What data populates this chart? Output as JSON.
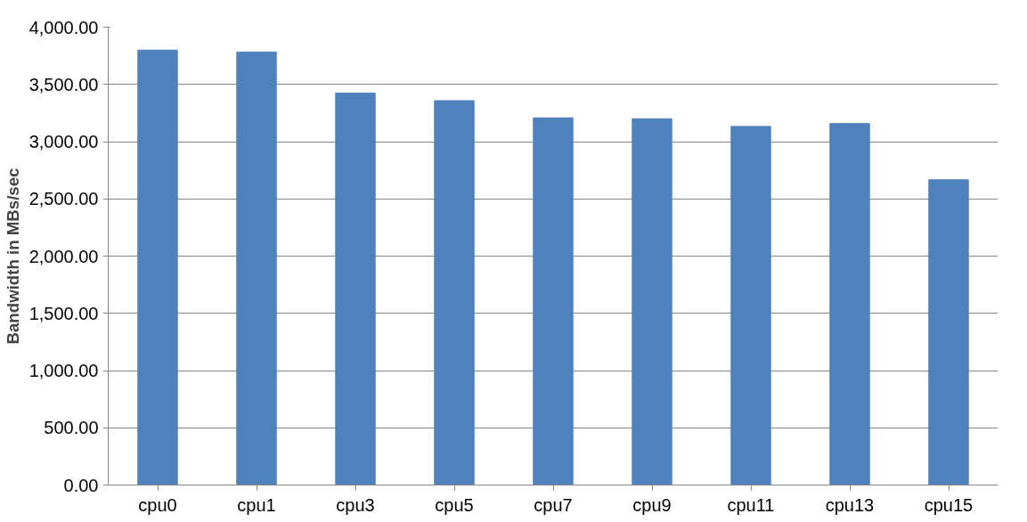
{
  "chart_data": {
    "type": "bar",
    "ylabel": "Bandwidth in MBs/sec",
    "categories": [
      "cpu0",
      "cpu1",
      "cpu3",
      "cpu5",
      "cpu7",
      "cpu9",
      "cpu11",
      "cpu13",
      "cpu15"
    ],
    "values": [
      3800,
      3783,
      3425,
      3358,
      3208,
      3200,
      3133,
      3158,
      2667
    ],
    "color": "#4f81bd",
    "ylim": [
      0,
      4000
    ],
    "yticks": [
      {
        "value": 0,
        "label": "0.00"
      },
      {
        "value": 500,
        "label": "500.00"
      },
      {
        "value": 1000,
        "label": "1,000.00"
      },
      {
        "value": 1500,
        "label": "1,500.00"
      },
      {
        "value": 2000,
        "label": "2,000.00"
      },
      {
        "value": 2500,
        "label": "2,500.00"
      },
      {
        "value": 3000,
        "label": "3,000.00"
      },
      {
        "value": 3500,
        "label": "3,500.00"
      },
      {
        "value": 4000,
        "label": "4,000.00"
      }
    ],
    "grid": "y"
  }
}
